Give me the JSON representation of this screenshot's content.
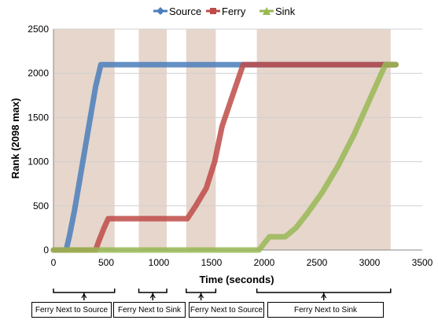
{
  "chart_data": {
    "type": "line",
    "title": "",
    "xlabel": "Time (seconds)",
    "ylabel": "Rank (2098 max)",
    "xlim": [
      0,
      3500
    ],
    "ylim": [
      0,
      2500
    ],
    "xticks": [
      0,
      500,
      1000,
      1500,
      2000,
      2500,
      3000,
      3500
    ],
    "yticks": [
      0,
      500,
      1000,
      1500,
      2000,
      2500
    ],
    "grid": "horizontal",
    "legend_position": "top",
    "series": [
      {
        "name": "Source",
        "color": "#4a7ebb",
        "points": [
          [
            0,
            0
          ],
          [
            120,
            0
          ],
          [
            150,
            150
          ],
          [
            200,
            450
          ],
          [
            250,
            800
          ],
          [
            300,
            1150
          ],
          [
            350,
            1500
          ],
          [
            400,
            1850
          ],
          [
            450,
            2098
          ],
          [
            600,
            2098
          ],
          [
            3250,
            2098
          ]
        ]
      },
      {
        "name": "Ferry",
        "color": "#be4b48",
        "points": [
          [
            0,
            0
          ],
          [
            400,
            0
          ],
          [
            430,
            100
          ],
          [
            480,
            250
          ],
          [
            520,
            355
          ],
          [
            600,
            355
          ],
          [
            800,
            355
          ],
          [
            1000,
            355
          ],
          [
            1270,
            355
          ],
          [
            1350,
            500
          ],
          [
            1450,
            700
          ],
          [
            1530,
            1000
          ],
          [
            1600,
            1400
          ],
          [
            1700,
            1750
          ],
          [
            1800,
            2098
          ],
          [
            3250,
            2098
          ]
        ]
      },
      {
        "name": "Sink",
        "color": "#98b954",
        "points": [
          [
            0,
            0
          ],
          [
            1950,
            0
          ],
          [
            2050,
            150
          ],
          [
            2200,
            150
          ],
          [
            2300,
            250
          ],
          [
            2400,
            400
          ],
          [
            2550,
            650
          ],
          [
            2700,
            950
          ],
          [
            2850,
            1300
          ],
          [
            3000,
            1700
          ],
          [
            3150,
            2098
          ],
          [
            3250,
            2098
          ]
        ]
      }
    ],
    "shaded_regions": [
      {
        "x": [
          0,
          580
        ],
        "label": "Ferry Next to Source"
      },
      {
        "x": [
          810,
          1075
        ],
        "label": "Ferry Next to Sink"
      },
      {
        "x": [
          1260,
          1540
        ],
        "label": "Ferry Next to Source"
      },
      {
        "x": [
          1930,
          3200
        ],
        "label": "Ferry Next to Sink"
      }
    ],
    "shade_color": "#d9c0b0"
  }
}
